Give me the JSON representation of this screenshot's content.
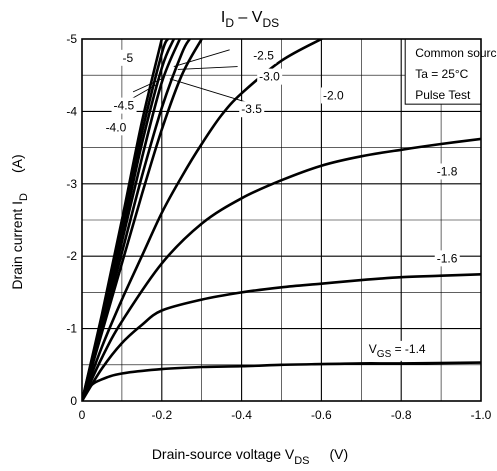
{
  "chart_data": {
    "type": "line",
    "title_main": "I",
    "title_sub1": "D",
    "title_mid": " – V",
    "title_sub2": "DS",
    "xlabel_main": "Drain-source voltage   V",
    "xlabel_sub": "DS",
    "xlabel_unit": "(V)",
    "ylabel_main": "Drain current   I",
    "ylabel_sub": "D",
    "ylabel_unit": "(A)",
    "xlim": [
      0,
      -1.0
    ],
    "ylim": [
      0,
      -5
    ],
    "x_ticks": [
      {
        "value": 0,
        "label": "0"
      },
      {
        "value": -0.2,
        "label": "-0.2"
      },
      {
        "value": -0.4,
        "label": "-0.4"
      },
      {
        "value": -0.6,
        "label": "-0.6"
      },
      {
        "value": -0.8,
        "label": "-0.8"
      },
      {
        "value": -1.0,
        "label": "-1.0"
      }
    ],
    "y_ticks": [
      {
        "value": 0,
        "label": "0"
      },
      {
        "value": -1,
        "label": "-1"
      },
      {
        "value": -2,
        "label": "-2"
      },
      {
        "value": -3,
        "label": "-3"
      },
      {
        "value": -4,
        "label": "-4"
      },
      {
        "value": -5,
        "label": "-5"
      }
    ],
    "minor_step_x": -0.1,
    "minor_step_y": -0.5,
    "grid": true,
    "legend_box": {
      "lines": [
        "Common source",
        "Ta = 25°C",
        "Pulse Test"
      ],
      "placement": "top-right"
    },
    "series": [
      {
        "vgs": "-1.4",
        "label_prefix": "V",
        "label_sub": "GS",
        "label": " = -1.4",
        "points": [
          [
            0,
            0
          ],
          [
            -0.02,
            -0.2
          ],
          [
            -0.05,
            -0.3
          ],
          [
            -0.1,
            -0.38
          ],
          [
            -0.2,
            -0.44
          ],
          [
            -0.3,
            -0.47
          ],
          [
            -0.4,
            -0.48
          ],
          [
            -0.5,
            -0.5
          ],
          [
            -0.6,
            -0.51
          ],
          [
            -0.7,
            -0.52
          ],
          [
            -0.8,
            -0.52
          ],
          [
            -1.0,
            -0.53
          ]
        ]
      },
      {
        "vgs": "-1.6",
        "label": "-1.6",
        "points": [
          [
            0,
            0
          ],
          [
            -0.05,
            -0.45
          ],
          [
            -0.1,
            -0.8
          ],
          [
            -0.15,
            -1.05
          ],
          [
            -0.2,
            -1.25
          ],
          [
            -0.3,
            -1.4
          ],
          [
            -0.4,
            -1.5
          ],
          [
            -0.5,
            -1.57
          ],
          [
            -0.6,
            -1.62
          ],
          [
            -0.7,
            -1.67
          ],
          [
            -0.8,
            -1.71
          ],
          [
            -0.9,
            -1.73
          ],
          [
            -1.0,
            -1.75
          ]
        ]
      },
      {
        "vgs": "-1.8",
        "label": "-1.8",
        "points": [
          [
            0,
            0
          ],
          [
            -0.05,
            -0.6
          ],
          [
            -0.1,
            -1.1
          ],
          [
            -0.2,
            -1.9
          ],
          [
            -0.3,
            -2.45
          ],
          [
            -0.4,
            -2.8
          ],
          [
            -0.5,
            -3.05
          ],
          [
            -0.6,
            -3.25
          ],
          [
            -0.7,
            -3.38
          ],
          [
            -0.8,
            -3.47
          ],
          [
            -0.9,
            -3.55
          ],
          [
            -1.0,
            -3.62
          ]
        ]
      },
      {
        "vgs": "-2.0",
        "label": "-2.0",
        "points": [
          [
            0,
            0
          ],
          [
            -0.05,
            -0.75
          ],
          [
            -0.1,
            -1.4
          ],
          [
            -0.15,
            -2.0
          ],
          [
            -0.2,
            -2.6
          ],
          [
            -0.25,
            -3.1
          ],
          [
            -0.3,
            -3.55
          ],
          [
            -0.35,
            -3.95
          ],
          [
            -0.4,
            -4.25
          ],
          [
            -0.5,
            -4.7
          ],
          [
            -0.6,
            -5.0
          ]
        ]
      },
      {
        "vgs": "-2.5",
        "label": "-2.5",
        "points": [
          [
            0,
            0
          ],
          [
            -0.05,
            -0.95
          ],
          [
            -0.1,
            -1.9
          ],
          [
            -0.15,
            -2.85
          ],
          [
            -0.2,
            -3.75
          ],
          [
            -0.25,
            -4.5
          ],
          [
            -0.3,
            -5.0
          ]
        ]
      },
      {
        "vgs": "-3.0",
        "label": "-3.0",
        "points": [
          [
            0,
            0
          ],
          [
            -0.05,
            -1.0
          ],
          [
            -0.1,
            -2.05
          ],
          [
            -0.15,
            -3.1
          ],
          [
            -0.2,
            -4.05
          ],
          [
            -0.25,
            -4.8
          ],
          [
            -0.27,
            -5.0
          ]
        ]
      },
      {
        "vgs": "-3.5",
        "label": "-3.5",
        "points": [
          [
            0,
            0
          ],
          [
            -0.05,
            -1.05
          ],
          [
            -0.1,
            -2.2
          ],
          [
            -0.15,
            -3.35
          ],
          [
            -0.2,
            -4.4
          ],
          [
            -0.245,
            -5.0
          ]
        ]
      },
      {
        "vgs": "-4.0",
        "label": "-4.0",
        "points": [
          [
            0,
            0
          ],
          [
            -0.05,
            -1.1
          ],
          [
            -0.1,
            -2.3
          ],
          [
            -0.15,
            -3.55
          ],
          [
            -0.2,
            -4.6
          ],
          [
            -0.23,
            -5.0
          ]
        ]
      },
      {
        "vgs": "-4.5",
        "label": "-4.5",
        "points": [
          [
            0,
            0
          ],
          [
            -0.05,
            -1.15
          ],
          [
            -0.1,
            -2.4
          ],
          [
            -0.15,
            -3.7
          ],
          [
            -0.2,
            -4.8
          ],
          [
            -0.215,
            -5.0
          ]
        ]
      },
      {
        "vgs": "-5",
        "label": "-5",
        "points": [
          [
            0,
            0
          ],
          [
            -0.05,
            -1.2
          ],
          [
            -0.1,
            -2.5
          ],
          [
            -0.15,
            -3.85
          ],
          [
            -0.2,
            -5.0
          ]
        ]
      }
    ],
    "curve_labels": [
      {
        "text": "-5",
        "x": -0.115,
        "y": -4.74
      },
      {
        "text": "-4.5",
        "x": -0.105,
        "y": -4.08
      },
      {
        "text": "-4.0",
        "x": -0.085,
        "y": -3.78
      },
      {
        "text": "-2.5",
        "x": -0.455,
        "y": -4.77
      },
      {
        "text": "-3.0",
        "x": -0.47,
        "y": -4.48
      },
      {
        "text": "-3.5",
        "x": -0.425,
        "y": -4.03
      },
      {
        "text": "-2.0",
        "x": -0.63,
        "y": -4.22
      },
      {
        "text": "-1.8",
        "x": -0.915,
        "y": -3.17
      },
      {
        "text": "-1.6",
        "x": -0.915,
        "y": -1.97
      },
      {
        "vgs_label": true,
        "x": -0.79,
        "y": -0.72
      }
    ],
    "leaders": [
      {
        "from": [
          -0.078,
          -4.03
        ],
        "to": [
          -0.19,
          -4.38
        ]
      },
      {
        "from": [
          -0.128,
          -4.27
        ],
        "to": [
          -0.2,
          -4.45
        ]
      },
      {
        "from": [
          -0.37,
          -4.85
        ],
        "to": [
          -0.23,
          -4.62
        ]
      },
      {
        "from": [
          -0.39,
          -4.62
        ],
        "to": [
          -0.24,
          -4.58
        ]
      },
      {
        "from": [
          -0.41,
          -4.13
        ],
        "to": [
          -0.22,
          -4.45
        ]
      }
    ]
  }
}
